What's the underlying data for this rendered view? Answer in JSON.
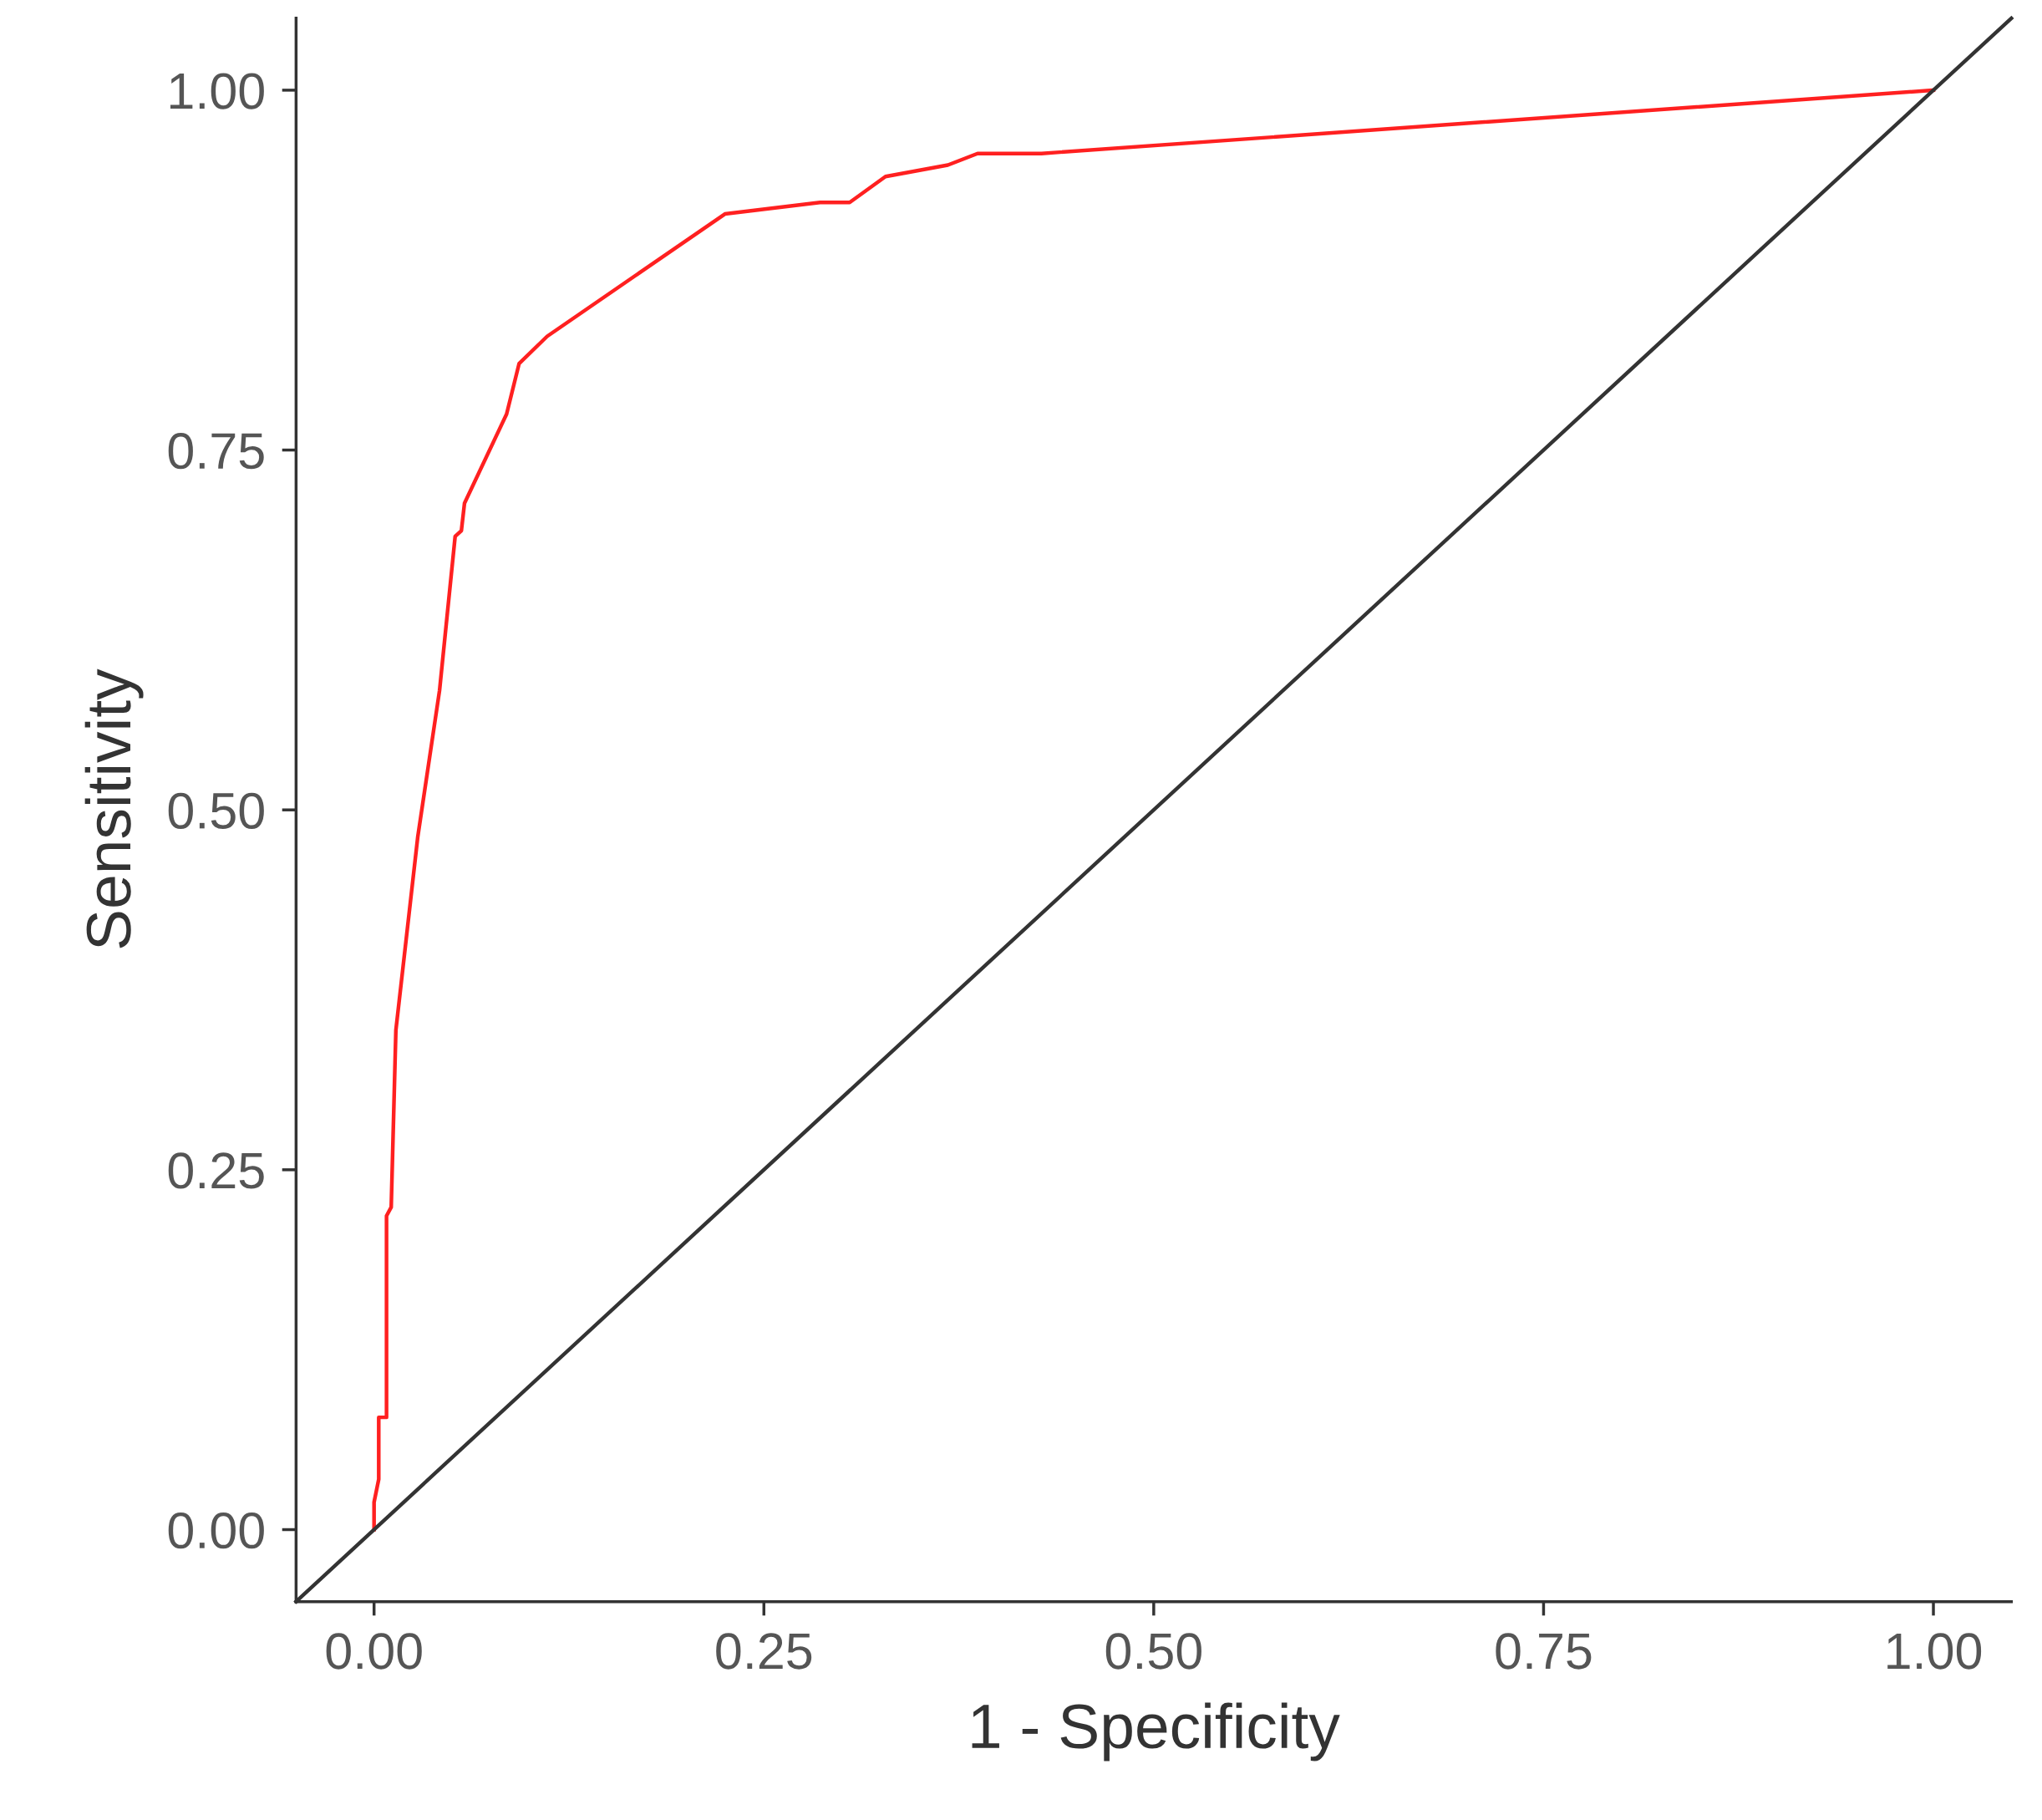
{
  "chart_data": {
    "type": "line",
    "xlabel": "1 - Specificity",
    "ylabel": "Sensitivity",
    "xlim": [
      -0.05,
      1.05
    ],
    "ylim": [
      -0.05,
      1.05
    ],
    "xticks": [
      {
        "value": 0,
        "label": "0.00"
      },
      {
        "value": 0.25,
        "label": "0.25"
      },
      {
        "value": 0.5,
        "label": "0.50"
      },
      {
        "value": 0.75,
        "label": "0.75"
      },
      {
        "value": 1,
        "label": "1.00"
      }
    ],
    "yticks": [
      {
        "value": 0,
        "label": "0.00"
      },
      {
        "value": 0.25,
        "label": "0.25"
      },
      {
        "value": 0.5,
        "label": "0.50"
      },
      {
        "value": 0.75,
        "label": "0.75"
      },
      {
        "value": 1,
        "label": "1.00"
      }
    ],
    "grid": false,
    "line_style": "solid",
    "marker": "none",
    "series": [
      {
        "color": "#ff2020",
        "x": [
          0,
          0,
          0.003,
          0.003,
          0.008,
          0.008,
          0.011,
          0.014,
          0.028,
          0.042,
          0.052,
          0.056,
          0.058,
          0.085,
          0.093,
          0.111,
          0.225,
          0.286,
          0.305,
          0.328,
          0.368,
          0.387,
          0.428,
          1
        ],
        "values": [
          0,
          0.019,
          0.035,
          0.078,
          0.078,
          0.218,
          0.224,
          0.347,
          0.481,
          0.583,
          0.69,
          0.694,
          0.713,
          0.775,
          0.81,
          0.829,
          0.914,
          0.922,
          0.922,
          0.94,
          0.948,
          0.956,
          0.956,
          1
        ]
      },
      {
        "color": "#333333",
        "x": [
          -0.05,
          1.05
        ],
        "values": [
          -0.05,
          1.05
        ]
      }
    ]
  }
}
